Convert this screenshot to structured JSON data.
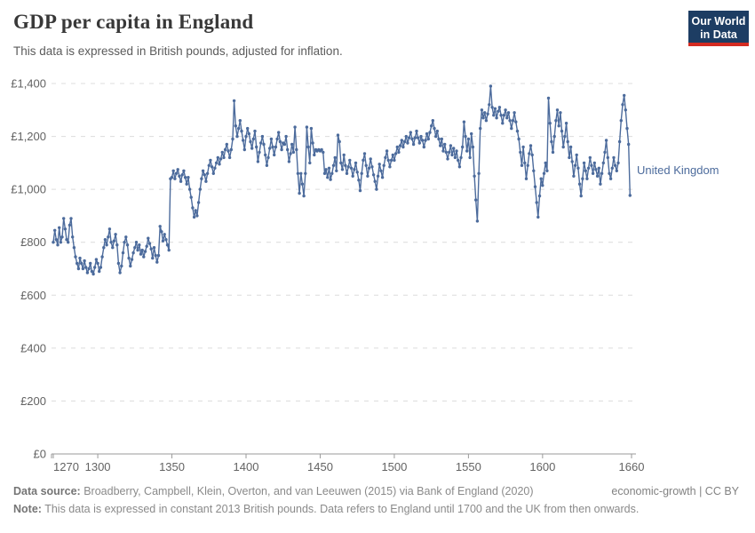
{
  "header": {
    "title": "GDP per capita in England",
    "subtitle": "This data is expressed in British pounds, adjusted for inflation."
  },
  "logo": {
    "line1": "Our World",
    "line2": "in Data",
    "bg_color": "#1d3d63",
    "bar_color": "#d42b21"
  },
  "chart_data": {
    "type": "line",
    "title": "GDP per capita in England",
    "entity_label": "United Kingdom",
    "unit": "£",
    "grid": "dashed",
    "line_color": "#4C6B9C",
    "axis_color": "#9a9a9a",
    "grid_color": "#dcdcdc",
    "tick_label_color": "#636363",
    "x_start": 1270,
    "x_step": 1,
    "x_ticks": [
      1270,
      1300,
      1350,
      1400,
      1450,
      1500,
      1550,
      1600,
      1660
    ],
    "xlim": [
      1270,
      1663
    ],
    "ylim": [
      0,
      1400
    ],
    "y_ticks": [
      0,
      200,
      400,
      600,
      800,
      1000,
      1200,
      1400
    ],
    "y_tick_labels": [
      "£0",
      "£200",
      "£400",
      "£600",
      "£800",
      "£1,000",
      "£1,200",
      "£1,400"
    ],
    "values": [
      800,
      845,
      810,
      790,
      855,
      800,
      820,
      890,
      850,
      810,
      800,
      865,
      890,
      820,
      780,
      745,
      720,
      700,
      740,
      720,
      700,
      730,
      705,
      685,
      700,
      720,
      690,
      680,
      705,
      735,
      720,
      690,
      705,
      745,
      780,
      810,
      790,
      820,
      850,
      800,
      780,
      805,
      830,
      790,
      720,
      685,
      710,
      760,
      800,
      820,
      790,
      740,
      710,
      735,
      760,
      780,
      800,
      770,
      790,
      755,
      770,
      745,
      765,
      785,
      815,
      795,
      775,
      740,
      780,
      750,
      725,
      750,
      860,
      840,
      805,
      830,
      810,
      790,
      770,
      1040,
      1045,
      1070,
      1040,
      1060,
      1075,
      1050,
      1030,
      1055,
      1070,
      1045,
      1020,
      1045,
      1000,
      970,
      930,
      895,
      920,
      900,
      950,
      1000,
      1040,
      1070,
      1055,
      1030,
      1060,
      1090,
      1110,
      1085,
      1060,
      1080,
      1100,
      1120,
      1095,
      1115,
      1140,
      1120,
      1150,
      1170,
      1145,
      1120,
      1150,
      1190,
      1335,
      1240,
      1200,
      1230,
      1260,
      1220,
      1185,
      1150,
      1200,
      1230,
      1210,
      1180,
      1155,
      1190,
      1220,
      1160,
      1105,
      1140,
      1175,
      1200,
      1170,
      1130,
      1090,
      1120,
      1155,
      1190,
      1160,
      1130,
      1160,
      1190,
      1215,
      1180,
      1150,
      1175,
      1170,
      1200,
      1150,
      1105,
      1135,
      1170,
      1140,
      1235,
      1150,
      1060,
      985,
      1060,
      1020,
      975,
      1060,
      1235,
      1160,
      1100,
      1230,
      1175,
      1130,
      1150,
      1145,
      1150,
      1145,
      1150,
      1140,
      1060,
      1075,
      1045,
      1080,
      1037,
      1060,
      1090,
      1120,
      1070,
      1205,
      1180,
      1100,
      1075,
      1130,
      1090,
      1060,
      1085,
      1110,
      1080,
      1050,
      1075,
      1100,
      1065,
      1035,
      995,
      1060,
      1110,
      1135,
      1090,
      1050,
      1080,
      1115,
      1085,
      1055,
      1030,
      1000,
      1050,
      1095,
      1070,
      1045,
      1090,
      1120,
      1145,
      1110,
      1085,
      1110,
      1130,
      1110,
      1135,
      1160,
      1140,
      1165,
      1185,
      1160,
      1180,
      1200,
      1175,
      1195,
      1215,
      1190,
      1170,
      1195,
      1220,
      1195,
      1175,
      1200,
      1185,
      1160,
      1185,
      1210,
      1190,
      1215,
      1240,
      1260,
      1230,
      1200,
      1220,
      1190,
      1165,
      1190,
      1145,
      1170,
      1140,
      1115,
      1140,
      1165,
      1130,
      1155,
      1120,
      1145,
      1110,
      1085,
      1120,
      1160,
      1255,
      1200,
      1145,
      1190,
      1120,
      1210,
      1160,
      1050,
      960,
      880,
      1060,
      1230,
      1300,
      1270,
      1290,
      1260,
      1285,
      1320,
      1390,
      1310,
      1280,
      1305,
      1270,
      1295,
      1310,
      1280,
      1250,
      1280,
      1300,
      1270,
      1290,
      1260,
      1230,
      1260,
      1290,
      1255,
      1220,
      1190,
      1140,
      1090,
      1160,
      1100,
      1040,
      1090,
      1135,
      1165,
      1130,
      1070,
      1010,
      950,
      895,
      975,
      1040,
      1015,
      1060,
      1100,
      1070,
      1345,
      1250,
      1180,
      1140,
      1200,
      1260,
      1300,
      1240,
      1290,
      1220,
      1160,
      1200,
      1250,
      1180,
      1120,
      1160,
      1105,
      1050,
      1090,
      1130,
      1080,
      1020,
      975,
      1040,
      1100,
      1070,
      1040,
      1080,
      1120,
      1090,
      1060,
      1100,
      1075,
      1050,
      1080,
      1020,
      1060,
      1100,
      1140,
      1185,
      1120,
      1060,
      1040,
      1080,
      1120,
      1090,
      1070,
      1100,
      1180,
      1260,
      1320,
      1355,
      1300,
      1230,
      1170,
      977
    ]
  },
  "footer": {
    "source_label": "Data source:",
    "source_text": " Broadberry, Campbell, Klein, Overton, and van Leeuwen (2015) via Bank of England (2020)",
    "license": "economic-growth | CC BY",
    "note_label": "Note:",
    "note_text": " This data is expressed in constant 2013 British pounds. Data refers to England until 1700 and the UK from then onwards."
  }
}
